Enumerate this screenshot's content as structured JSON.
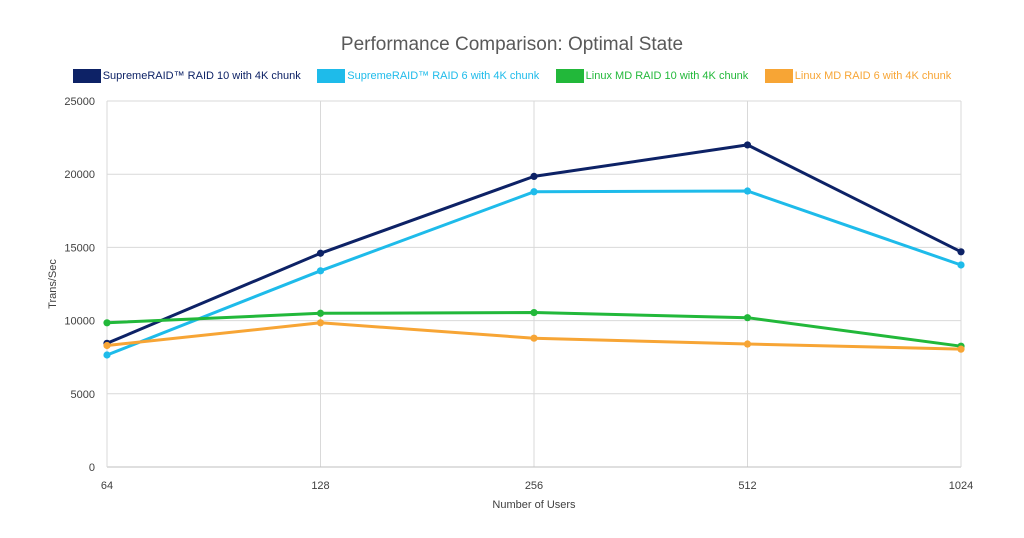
{
  "chart_data": {
    "type": "line",
    "title": "Performance Comparison: Optimal State",
    "xlabel": "Number of Users",
    "ylabel": "Trans/Sec",
    "categories": [
      "64",
      "128",
      "256",
      "512",
      "1024"
    ],
    "ylim": [
      0,
      25000
    ],
    "yticks": [
      0,
      5000,
      10000,
      15000,
      20000,
      25000
    ],
    "grid": true,
    "legend_position": "top",
    "series": [
      {
        "name": "SupremeRAID™ RAID 10 with 4K chunk",
        "color": "#0d2266",
        "values": [
          8450,
          14600,
          19850,
          22000,
          14700
        ]
      },
      {
        "name": "SupremeRAID™ RAID 6 with 4K chunk",
        "color": "#1ebbea",
        "values": [
          7650,
          13400,
          18800,
          18850,
          13800
        ]
      },
      {
        "name": "Linux MD RAID 10 with 4K chunk",
        "color": "#22b83a",
        "values": [
          9850,
          10500,
          10550,
          10200,
          8250
        ]
      },
      {
        "name": "Linux MD RAID 6 with 4K chunk",
        "color": "#f7a535",
        "values": [
          8300,
          9850,
          8800,
          8400,
          8050
        ]
      }
    ]
  }
}
